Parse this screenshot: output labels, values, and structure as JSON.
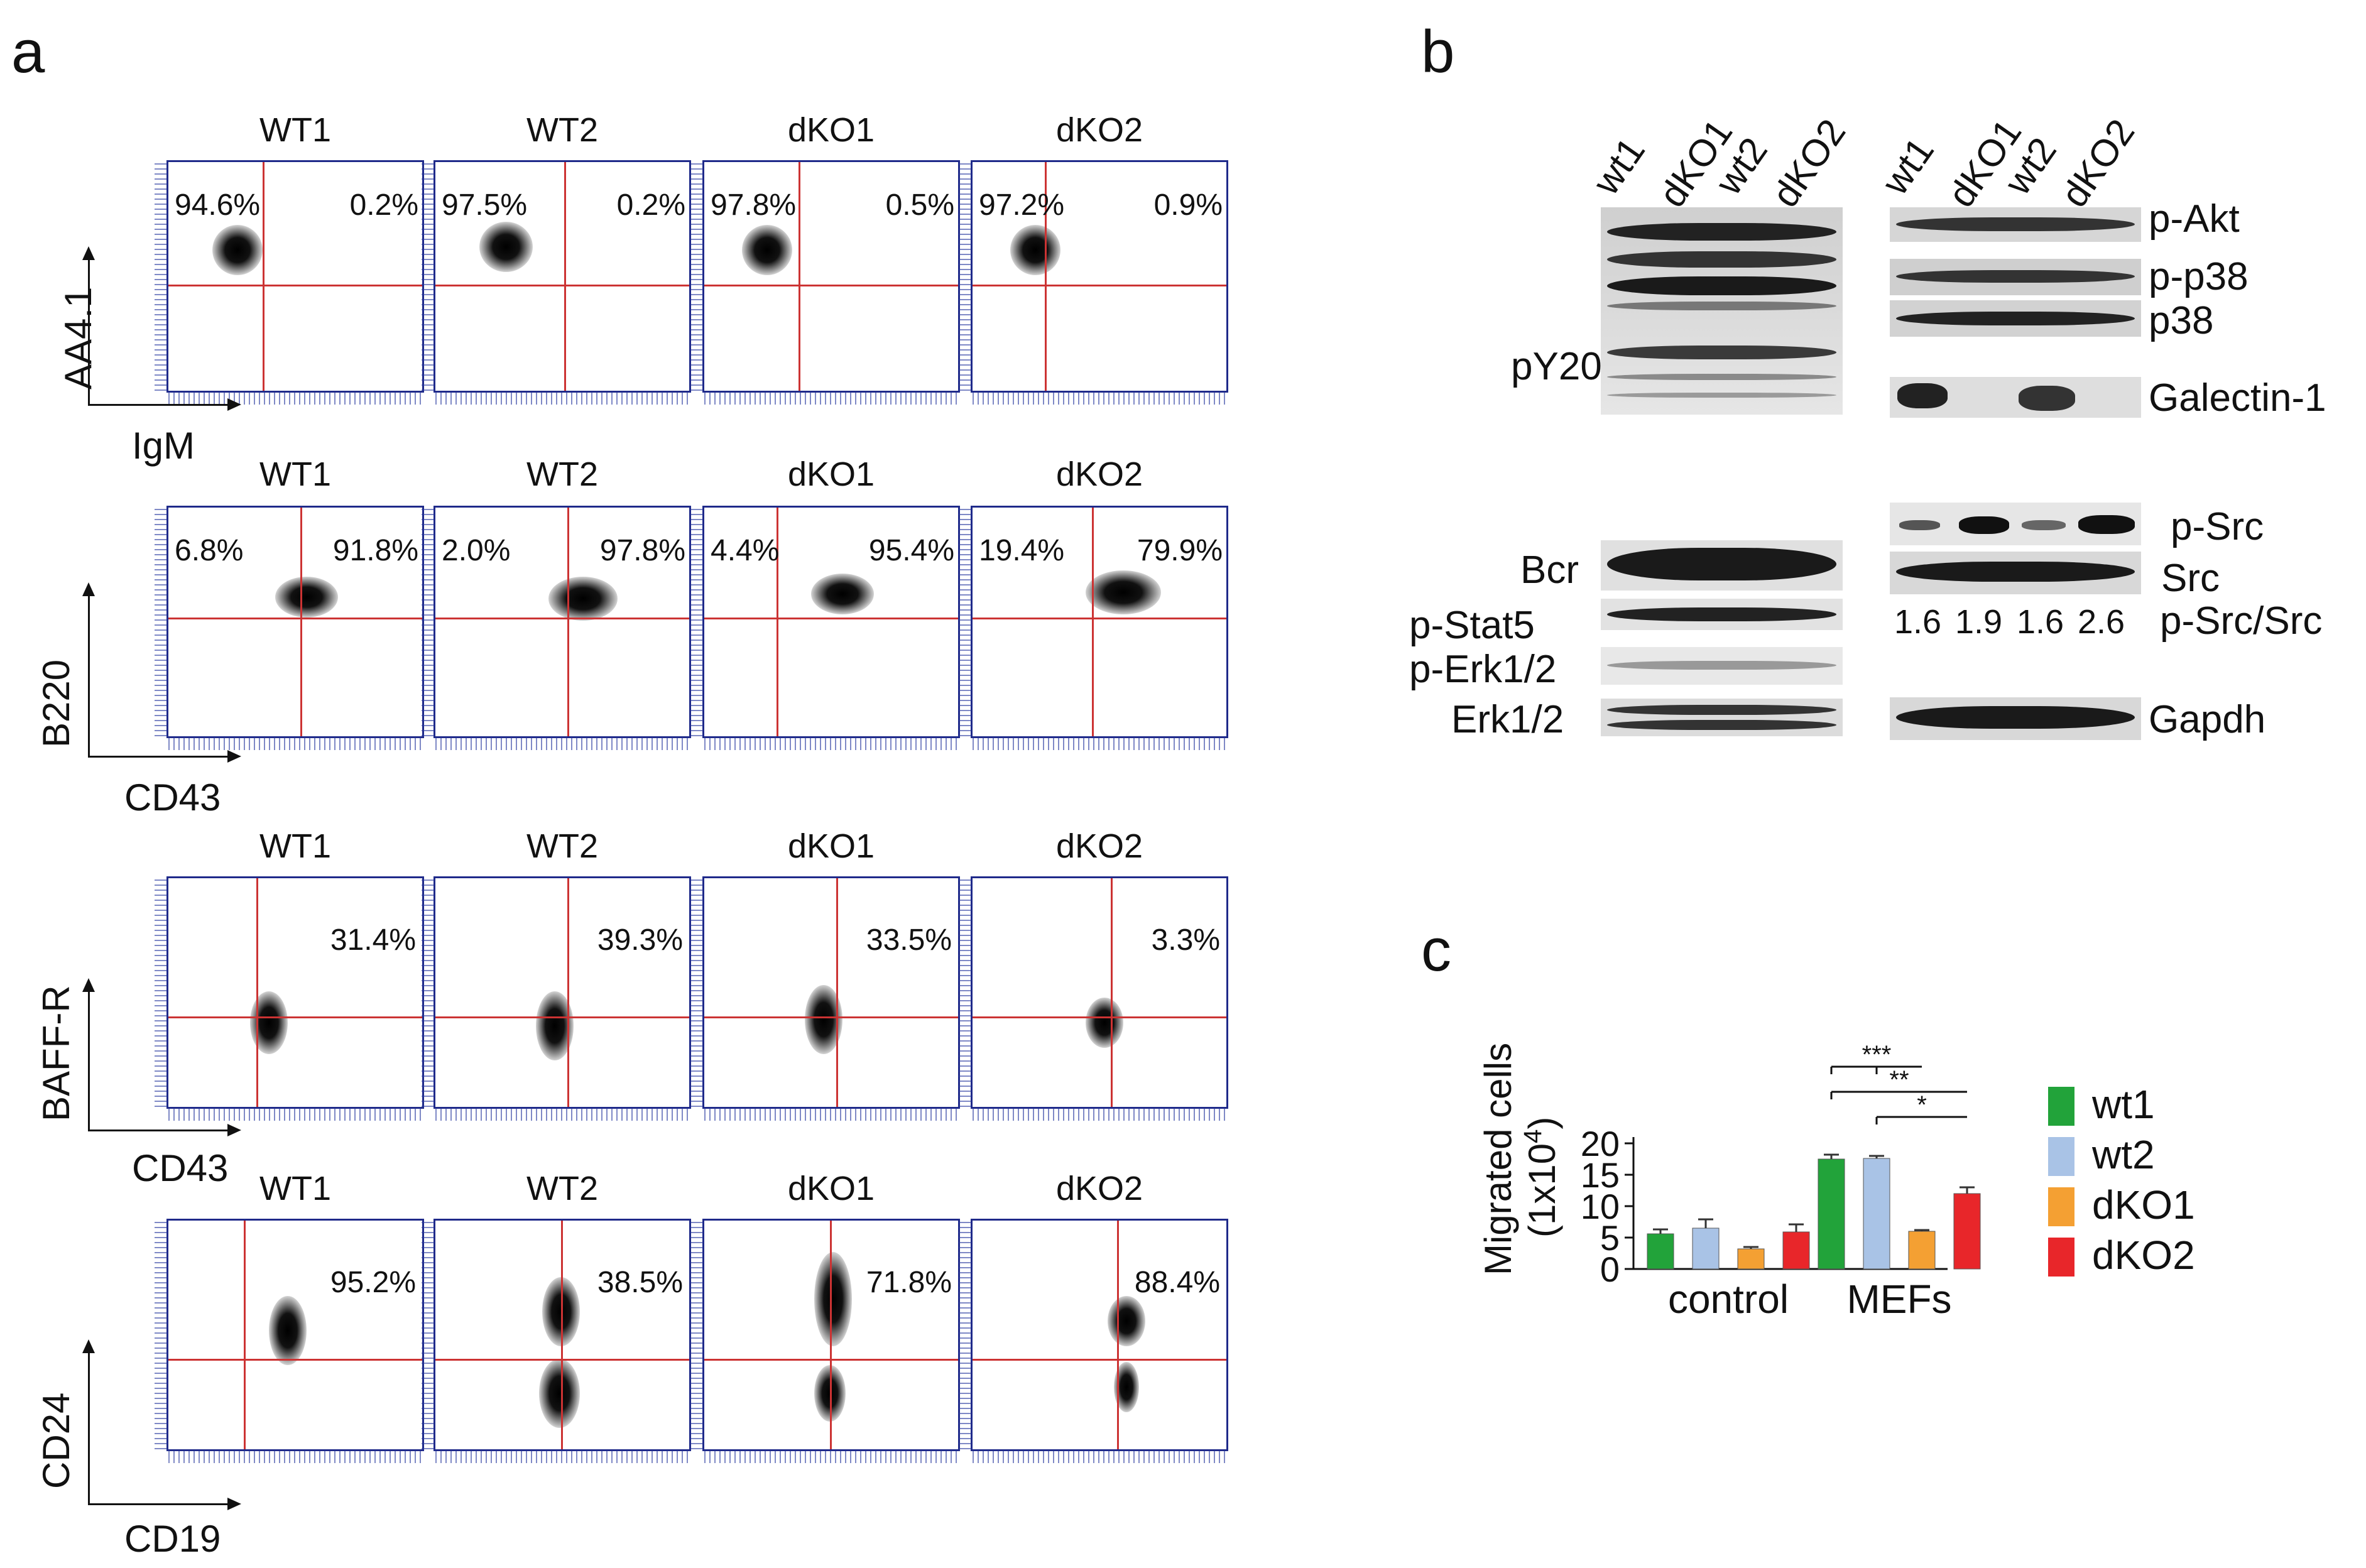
{
  "panels": {
    "a": "a",
    "b": "b",
    "c": "c"
  },
  "panel_a": {
    "samples": [
      "WT1",
      "WT2",
      "dKO1",
      "dKO2"
    ],
    "rows": [
      {
        "y_label": "AA4.1",
        "x_label": "IgM",
        "values": [
          [
            "94.6%",
            "0.2%"
          ],
          [
            "97.5%",
            "0.2%"
          ],
          [
            "97.8%",
            "0.5%"
          ],
          [
            "97.2%",
            "0.9%"
          ]
        ]
      },
      {
        "y_label": "B220",
        "x_label": "CD43",
        "values": [
          [
            "6.8%",
            "91.8%"
          ],
          [
            "2.0%",
            "97.8%"
          ],
          [
            "4.4%",
            "95.4%"
          ],
          [
            "19.4%",
            "79.9%"
          ]
        ]
      },
      {
        "y_label": "BAFF-R",
        "x_label": "CD43",
        "values": [
          [
            "31.4%"
          ],
          [
            "39.3%"
          ],
          [
            "33.5%"
          ],
          [
            "3.3%"
          ]
        ]
      },
      {
        "y_label": "CD24",
        "x_label": "CD19",
        "values": [
          [
            "95.2%"
          ],
          [
            "38.5%"
          ],
          [
            "71.8%"
          ],
          [
            "88.4%"
          ]
        ]
      }
    ]
  },
  "panel_b": {
    "lanes": [
      "wt1",
      "dKO1",
      "wt2",
      "dKO2"
    ],
    "left_labels": {
      "pY20": "pY20",
      "bcr": "Bcr",
      "stat5": "p-Stat5",
      "perk": "p-Erk1/2",
      "erk": "Erk1/2"
    },
    "right_labels": {
      "pakt": "p-Akt",
      "pp38": "p-p38",
      "p38": "p38",
      "gal": "Galectin-1",
      "psrc": "p-Src",
      "src": "Src",
      "ratio": "p-Src/Src",
      "gapdh": "Gapdh"
    },
    "ratios": [
      "1.6",
      "1.9",
      "1.6",
      "2.6"
    ]
  },
  "chart_data": {
    "type": "bar",
    "categories": [
      "control",
      "MEFs"
    ],
    "series": [
      {
        "name": "wt1",
        "color": "#22a33a",
        "values": [
          5.6,
          17.5
        ],
        "errors": [
          0.7,
          0.7
        ]
      },
      {
        "name": "wt2",
        "color": "#a9c3e6",
        "values": [
          6.5,
          17.6
        ],
        "errors": [
          1.4,
          0.4
        ]
      },
      {
        "name": "dKO1",
        "color": "#f4a033",
        "values": [
          3.2,
          6.0
        ],
        "errors": [
          0.3,
          0.2
        ]
      },
      {
        "name": "dKO2",
        "color": "#e8262a",
        "values": [
          5.9,
          12.0
        ],
        "errors": [
          1.2,
          1.0
        ]
      }
    ],
    "ylabel_line1": "Migrated cells",
    "ylabel_line2": "(1x10",
    "ylabel_exp": "4",
    "ylabel_close": ")",
    "ylim": [
      0,
      20
    ],
    "yticks": [
      0,
      5,
      10,
      15,
      20
    ],
    "significance": [
      "***",
      "**",
      "*"
    ]
  }
}
